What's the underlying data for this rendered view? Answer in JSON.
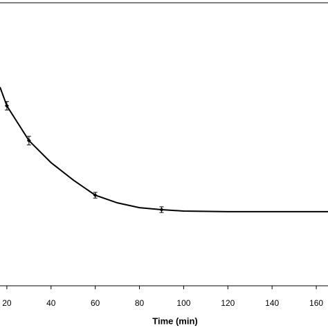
{
  "chart_data": {
    "type": "line",
    "x_label": "Time (min)",
    "xlim": [
      16.9,
      165.3
    ],
    "xticks": [
      20,
      40,
      60,
      80,
      100,
      120,
      140,
      160
    ],
    "ylim": [
      0,
      100
    ],
    "series": [
      {
        "type": "line",
        "color": "#000000",
        "x": [
          16.9,
          20,
          30,
          40,
          50,
          60,
          70,
          80,
          90,
          100,
          120,
          165.3
        ],
        "values": [
          70.2,
          63.6,
          51.3,
          43.5,
          37.4,
          32.0,
          29.3,
          27.6,
          26.9,
          26.4,
          26.2,
          26.2
        ]
      },
      {
        "type": "scatter",
        "color": "#000000",
        "x": [
          20,
          30,
          60,
          90
        ],
        "values": [
          63.6,
          51.3,
          32.0,
          26.9
        ],
        "errors": [
          1.5,
          1.5,
          1.0,
          1.0
        ]
      }
    ]
  }
}
